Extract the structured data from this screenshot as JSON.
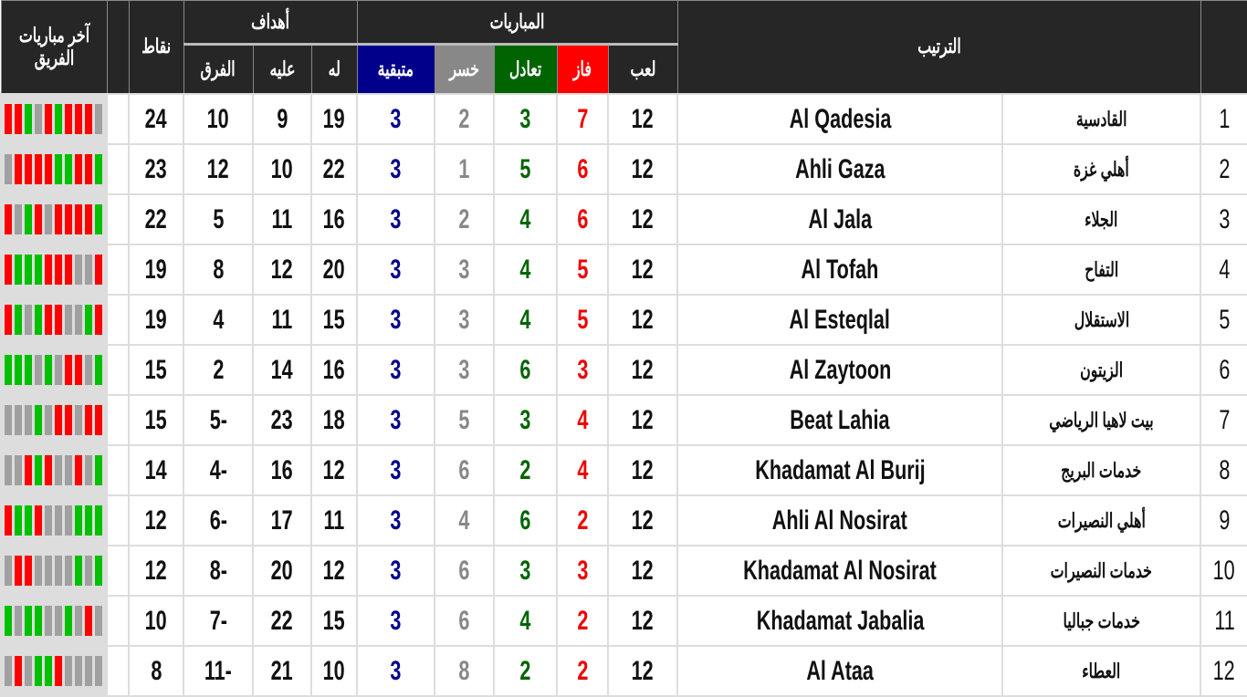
{
  "header": {
    "form": "آخر مباريات الفريق",
    "points": "نقاط",
    "goals": "أهداف",
    "goals_for": "له",
    "goals_against": "عليه",
    "goal_diff": "الفرق",
    "matches": "المباريات",
    "remaining": "متبقية",
    "lost": "خسر",
    "draw": "تعادل",
    "won": "فاز",
    "played": "لعب",
    "ranking": "الترتيب"
  },
  "colors": {
    "win": "#ff0000",
    "draw": "#00c000",
    "loss": "#a0a0a0",
    "header": "#262626",
    "remaining": "#00008b"
  },
  "rows": [
    {
      "rank": "1",
      "ar": "القادسية",
      "en": "Al Qadesia",
      "played": "12",
      "won": "7",
      "draw": "3",
      "lost": "2",
      "remaining": "3",
      "gf": "19",
      "ga": "9",
      "gd": "10",
      "pts": "24",
      "form": "RRGXRGRRRX"
    },
    {
      "rank": "2",
      "ar": "أهلي غزة",
      "en": "Ahli Gaza",
      "played": "12",
      "won": "6",
      "draw": "5",
      "lost": "1",
      "remaining": "3",
      "gf": "22",
      "ga": "10",
      "gd": "12",
      "pts": "23",
      "form": "XRRRRGGRRG"
    },
    {
      "rank": "3",
      "ar": "الجلاء",
      "en": "Al Jala",
      "played": "12",
      "won": "6",
      "draw": "4",
      "lost": "2",
      "remaining": "3",
      "gf": "16",
      "ga": "11",
      "gd": "5",
      "pts": "22",
      "form": "RXGRXRRRRG"
    },
    {
      "rank": "4",
      "ar": "التفاح",
      "en": "Al Tofah",
      "played": "12",
      "won": "5",
      "draw": "4",
      "lost": "3",
      "remaining": "3",
      "gf": "20",
      "ga": "12",
      "gd": "8",
      "pts": "19",
      "form": "RGGGRRRXXR"
    },
    {
      "rank": "5",
      "ar": "الاستقلال",
      "en": "Al Esteqlal",
      "played": "12",
      "won": "5",
      "draw": "4",
      "lost": "3",
      "remaining": "3",
      "gf": "15",
      "ga": "11",
      "gd": "4",
      "pts": "19",
      "form": "RGXGRRXXGR"
    },
    {
      "rank": "6",
      "ar": "الزيتون",
      "en": "Al Zaytoon",
      "played": "12",
      "won": "3",
      "draw": "6",
      "lost": "3",
      "remaining": "3",
      "gf": "16",
      "ga": "14",
      "gd": "2",
      "pts": "15",
      "form": "GGGXGXRRXG"
    },
    {
      "rank": "7",
      "ar": "بيت لاهيا الرياضي",
      "en": "Beat Lahia",
      "played": "12",
      "won": "4",
      "draw": "3",
      "lost": "5",
      "remaining": "3",
      "gf": "18",
      "ga": "23",
      "gd": "5-",
      "pts": "15",
      "form": "XXXGXRRXRR"
    },
    {
      "rank": "8",
      "ar": "خدمات البريج",
      "en": "Khadamat Al Burij",
      "played": "12",
      "won": "4",
      "draw": "2",
      "lost": "6",
      "remaining": "3",
      "gf": "12",
      "ga": "16",
      "gd": "4-",
      "pts": "14",
      "form": "XXRGRXXRXG"
    },
    {
      "rank": "9",
      "ar": "أهلي النصيرات",
      "en": "Ahli Al Nosirat",
      "played": "12",
      "won": "2",
      "draw": "6",
      "lost": "4",
      "remaining": "3",
      "gf": "11",
      "ga": "17",
      "gd": "6-",
      "pts": "12",
      "form": "RGGRXXXGGG"
    },
    {
      "rank": "10",
      "ar": "خدمات النصيرات",
      "en": "Khadamat Al Nosirat",
      "played": "12",
      "won": "3",
      "draw": "3",
      "lost": "6",
      "remaining": "3",
      "gf": "12",
      "ga": "20",
      "gd": "8-",
      "pts": "12",
      "form": "XRRXXXXGXG"
    },
    {
      "rank": "11",
      "ar": "خدمات جباليا",
      "en": "Khadamat Jabalia",
      "played": "12",
      "won": "2",
      "draw": "4",
      "lost": "6",
      "remaining": "3",
      "gf": "15",
      "ga": "22",
      "gd": "7-",
      "pts": "10",
      "form": "GXGGXXGXRX"
    },
    {
      "rank": "12",
      "ar": "العطاء",
      "en": "Al Ataa",
      "played": "12",
      "won": "2",
      "draw": "2",
      "lost": "8",
      "remaining": "3",
      "gf": "10",
      "ga": "21",
      "gd": "11-",
      "pts": "8",
      "form": "XRXGGRXXXX"
    }
  ]
}
